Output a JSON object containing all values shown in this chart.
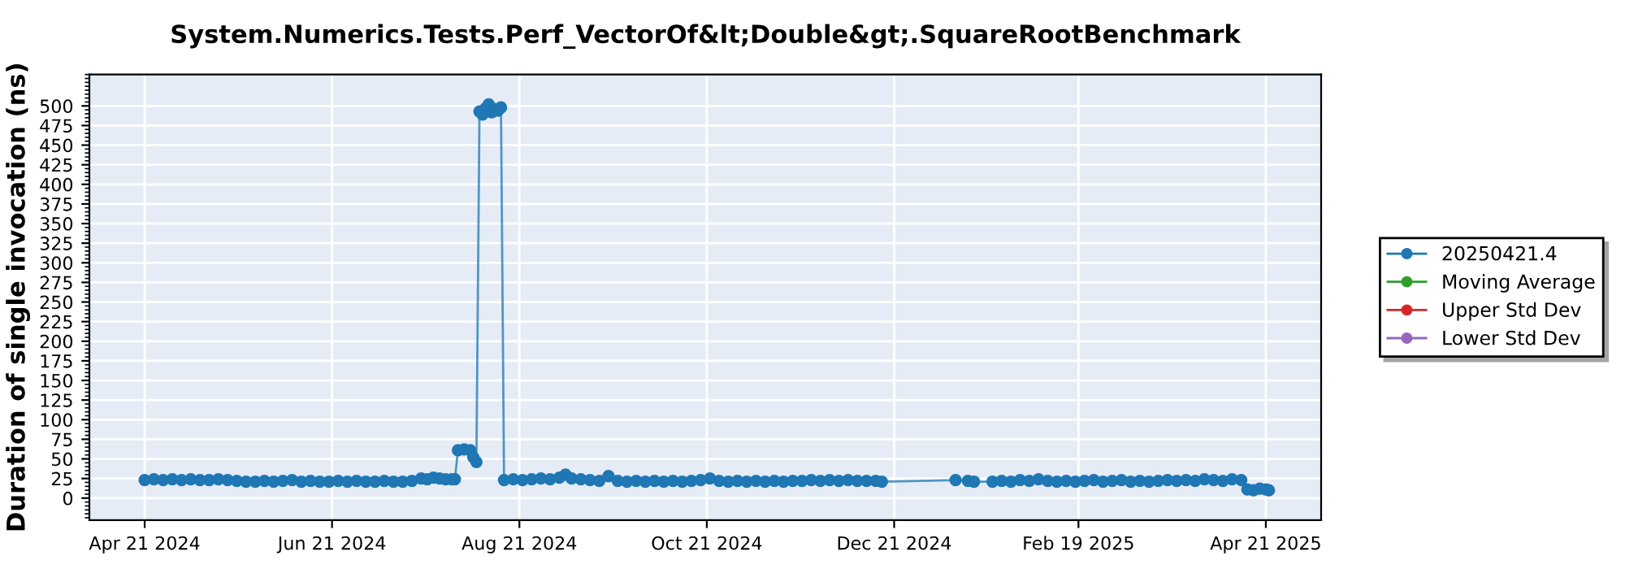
{
  "chart_data": {
    "type": "line",
    "title": "System.Numerics.Tests.Perf_VectorOf&lt;Double&gt;.SquareRootBenchmark",
    "ylabel": "Duration of single invocation (ns)",
    "marker": "circle",
    "line_style": "solid",
    "grid": true,
    "legend": "right",
    "xlim": [
      "2024-04-03",
      "2025-05-09"
    ],
    "xticks": [
      {
        "value": "2024-04-21",
        "label": "Apr 21 2024"
      },
      {
        "value": "2024-06-21",
        "label": "Jun 21 2024"
      },
      {
        "value": "2024-08-21",
        "label": "Aug 21 2024"
      },
      {
        "value": "2024-10-21",
        "label": "Oct 21 2024"
      },
      {
        "value": "2024-12-21",
        "label": "Dec 21 2024"
      },
      {
        "value": "2025-02-19",
        "label": "Feb 19 2025"
      },
      {
        "value": "2025-04-21",
        "label": "Apr 21 2025"
      }
    ],
    "ylim": [
      -28,
      540
    ],
    "yticks": [
      0,
      25,
      50,
      75,
      100,
      125,
      150,
      175,
      200,
      225,
      250,
      275,
      300,
      325,
      350,
      375,
      400,
      425,
      450,
      475,
      500
    ],
    "series": [
      {
        "name": "20250421.4",
        "color": "#1f77b4",
        "x": [
          "2024-04-21",
          "2024-04-24",
          "2024-04-27",
          "2024-04-30",
          "2024-05-03",
          "2024-05-06",
          "2024-05-09",
          "2024-05-12",
          "2024-05-15",
          "2024-05-18",
          "2024-05-21",
          "2024-05-24",
          "2024-05-27",
          "2024-05-30",
          "2024-06-02",
          "2024-06-05",
          "2024-06-08",
          "2024-06-11",
          "2024-06-14",
          "2024-06-17",
          "2024-06-20",
          "2024-06-23",
          "2024-06-26",
          "2024-06-29",
          "2024-07-02",
          "2024-07-05",
          "2024-07-08",
          "2024-07-11",
          "2024-07-14",
          "2024-07-17",
          "2024-07-20",
          "2024-07-22",
          "2024-07-24",
          "2024-07-26",
          "2024-07-28",
          "2024-07-30",
          "2024-07-31",
          "2024-08-01",
          "2024-08-03",
          "2024-08-05",
          "2024-08-06",
          "2024-08-07",
          "2024-08-08",
          "2024-08-09",
          "2024-08-10",
          "2024-08-11",
          "2024-08-12",
          "2024-08-13",
          "2024-08-14",
          "2024-08-15",
          "2024-08-16",
          "2024-08-19",
          "2024-08-22",
          "2024-08-25",
          "2024-08-28",
          "2024-08-31",
          "2024-09-03",
          "2024-09-05",
          "2024-09-07",
          "2024-09-10",
          "2024-09-13",
          "2024-09-16",
          "2024-09-19",
          "2024-09-22",
          "2024-09-25",
          "2024-09-28",
          "2024-10-01",
          "2024-10-04",
          "2024-10-07",
          "2024-10-10",
          "2024-10-13",
          "2024-10-16",
          "2024-10-19",
          "2024-10-22",
          "2024-10-25",
          "2024-10-28",
          "2024-10-31",
          "2024-11-03",
          "2024-11-06",
          "2024-11-09",
          "2024-11-12",
          "2024-11-15",
          "2024-11-18",
          "2024-11-21",
          "2024-11-24",
          "2024-11-27",
          "2024-11-30",
          "2024-12-03",
          "2024-12-06",
          "2024-12-09",
          "2024-12-12",
          "2024-12-15",
          "2024-12-17",
          "2025-01-10",
          "2025-01-14",
          "2025-01-16",
          "2025-01-22",
          "2025-01-25",
          "2025-01-28",
          "2025-01-31",
          "2025-02-03",
          "2025-02-06",
          "2025-02-09",
          "2025-02-12",
          "2025-02-15",
          "2025-02-18",
          "2025-02-21",
          "2025-02-24",
          "2025-02-27",
          "2025-03-02",
          "2025-03-05",
          "2025-03-08",
          "2025-03-11",
          "2025-03-14",
          "2025-03-17",
          "2025-03-20",
          "2025-03-23",
          "2025-03-26",
          "2025-03-29",
          "2025-04-01",
          "2025-04-04",
          "2025-04-07",
          "2025-04-10",
          "2025-04-13",
          "2025-04-15",
          "2025-04-17",
          "2025-04-19",
          "2025-04-21",
          "2025-04-22"
        ],
        "values": [
          23,
          24,
          23,
          24,
          23,
          24,
          23,
          23,
          24,
          23,
          22,
          21,
          21,
          22,
          21,
          22,
          23,
          21,
          22,
          21,
          21,
          22,
          21,
          22,
          21,
          21,
          22,
          21,
          21,
          22,
          25,
          24,
          26,
          25,
          24,
          24,
          24,
          61,
          62,
          61,
          52,
          46,
          493,
          489,
          497,
          502,
          492,
          496,
          494,
          498,
          23,
          24,
          23,
          24,
          25,
          24,
          26,
          30,
          25,
          24,
          23,
          22,
          28,
          22,
          21,
          22,
          21,
          22,
          21,
          22,
          21,
          22,
          23,
          25,
          22,
          21,
          22,
          21,
          22,
          21,
          22,
          21,
          22,
          22,
          23,
          22,
          23,
          22,
          23,
          22,
          22,
          22,
          21,
          23,
          22,
          21,
          21,
          22,
          21,
          23,
          22,
          24,
          22,
          21,
          22,
          21,
          22,
          23,
          21,
          22,
          23,
          21,
          22,
          21,
          22,
          23,
          22,
          23,
          22,
          24,
          23,
          22,
          24,
          23,
          11,
          10,
          12,
          11,
          10
        ]
      },
      {
        "name": "Moving Average",
        "color": "#2ca02c"
      },
      {
        "name": "Upper Std Dev",
        "color": "#d62728"
      },
      {
        "name": "Lower Std Dev",
        "color": "#9467bd"
      }
    ]
  }
}
